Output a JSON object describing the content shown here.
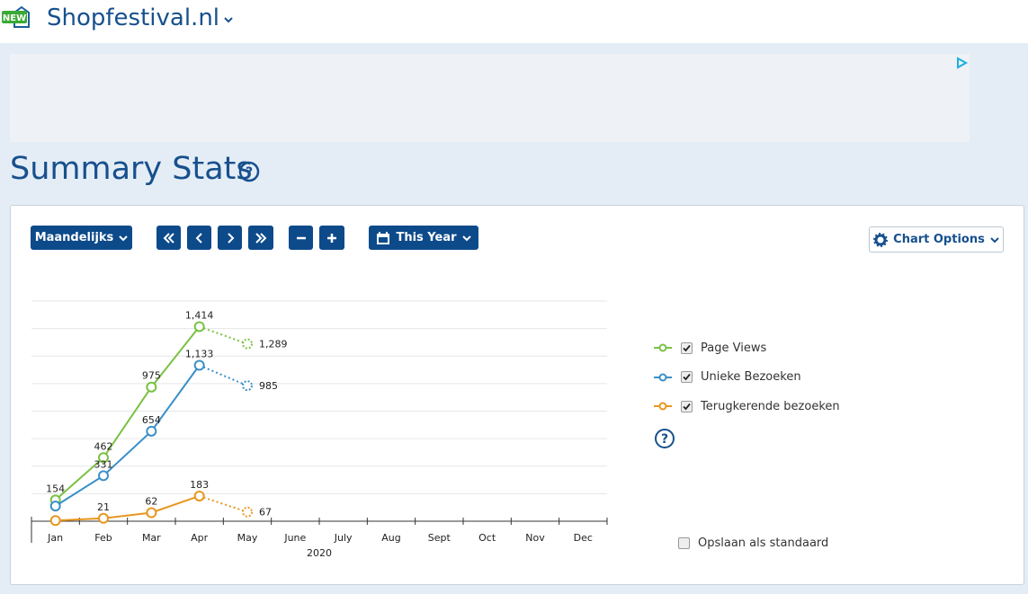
{
  "header": {
    "badge": "NEW",
    "site": "Shopfestival.nl"
  },
  "page_title": "Summary Stats",
  "toolbar": {
    "period": "Maandelijks",
    "range": "This Year",
    "options": "Chart Options"
  },
  "save_default": "Opslaan als standaard",
  "chart_data": {
    "type": "line",
    "categories": [
      "Jan",
      "Feb",
      "Mar",
      "Apr",
      "May",
      "June",
      "July",
      "Aug",
      "Sept",
      "Oct",
      "Nov",
      "Dec"
    ],
    "x_label": "2020",
    "series": [
      {
        "name": "Page Views",
        "color": "#7ac143",
        "values": [
          154,
          462,
          975,
          1414,
          1289,
          null,
          null,
          null,
          null,
          null,
          null,
          null
        ],
        "value_labels": [
          "154",
          "462",
          "975",
          "1,414",
          "1,289",
          null,
          null,
          null,
          null,
          null,
          null,
          null
        ]
      },
      {
        "name": "Unieke Bezoeken",
        "color": "#3a8fc8",
        "values": [
          110,
          331,
          654,
          1133,
          985,
          null,
          null,
          null,
          null,
          null,
          null,
          null
        ],
        "value_labels": [
          null,
          "331",
          "654",
          "1,133",
          "985",
          null,
          null,
          null,
          null,
          null,
          null,
          null
        ]
      },
      {
        "name": "Terugkerende bezoeken",
        "color": "#e8961e",
        "values": [
          5,
          21,
          62,
          183,
          67,
          null,
          null,
          null,
          null,
          null,
          null,
          null
        ],
        "value_labels": [
          null,
          "21",
          "62",
          "183",
          "67",
          null,
          null,
          null,
          null,
          null,
          null,
          null
        ]
      }
    ],
    "ylim": [
      0,
      1600
    ],
    "yticks": [
      0,
      200,
      400,
      600,
      800,
      1000,
      1200,
      1400,
      1600
    ],
    "grid": true
  }
}
